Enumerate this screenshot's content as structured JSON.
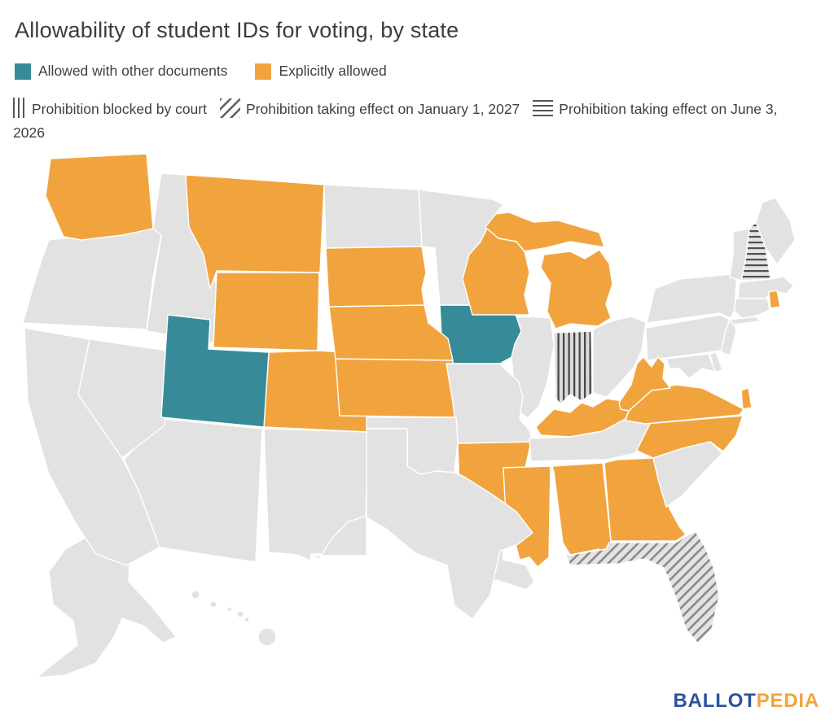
{
  "title": "Allowability of student IDs for voting, by state",
  "legend": {
    "row1": [
      {
        "label": "Allowed with other documents",
        "status": "allowed_with_other_documents",
        "color": "#378B99"
      },
      {
        "label": "Explicitly allowed",
        "status": "explicitly_allowed",
        "color": "#F1A43D"
      }
    ],
    "row2": [
      {
        "label": "Prohibition blocked by court",
        "status": "prohibition_blocked_by_court",
        "pattern": "vertical-lines"
      },
      {
        "label": "Prohibition taking effect on January 1, 2027",
        "status": "prohibition_effective_jan_1_2027",
        "pattern": "diagonal-lines"
      },
      {
        "label": "Prohibition taking effect on June 3, 2026",
        "status": "prohibition_effective_june_3_2026",
        "pattern": "horizontal-lines"
      }
    ]
  },
  "map": {
    "type": "choropleth-us-states",
    "default_color": "#E2E2E2",
    "border_color": "#FFFFFF",
    "status_colors": {
      "allowed_with_other_documents": "#378B99",
      "explicitly_allowed": "#F1A43D",
      "none": "#E2E2E2"
    },
    "pattern_fills": {
      "prohibition_blocked_by_court": "vertical-lines",
      "prohibition_effective_jan_1_2027": "diagonal-lines",
      "prohibition_effective_june_3_2026": "horizontal-lines"
    },
    "states": [
      {
        "id": "AL",
        "name": "Alabama",
        "status": "explicitly_allowed"
      },
      {
        "id": "AK",
        "name": "Alaska",
        "status": "none"
      },
      {
        "id": "AZ",
        "name": "Arizona",
        "status": "none"
      },
      {
        "id": "AR",
        "name": "Arkansas",
        "status": "explicitly_allowed"
      },
      {
        "id": "CA",
        "name": "California",
        "status": "none"
      },
      {
        "id": "CO",
        "name": "Colorado",
        "status": "explicitly_allowed"
      },
      {
        "id": "CT",
        "name": "Connecticut",
        "status": "none"
      },
      {
        "id": "DE",
        "name": "Delaware",
        "status": "none"
      },
      {
        "id": "FL",
        "name": "Florida",
        "status": "prohibition_effective_jan_1_2027"
      },
      {
        "id": "GA",
        "name": "Georgia",
        "status": "explicitly_allowed"
      },
      {
        "id": "HI",
        "name": "Hawaii",
        "status": "none"
      },
      {
        "id": "ID",
        "name": "Idaho",
        "status": "none"
      },
      {
        "id": "IL",
        "name": "Illinois",
        "status": "none"
      },
      {
        "id": "IN",
        "name": "Indiana",
        "status": "prohibition_blocked_by_court"
      },
      {
        "id": "IA",
        "name": "Iowa",
        "status": "allowed_with_other_documents"
      },
      {
        "id": "KS",
        "name": "Kansas",
        "status": "explicitly_allowed"
      },
      {
        "id": "KY",
        "name": "Kentucky",
        "status": "explicitly_allowed"
      },
      {
        "id": "LA",
        "name": "Louisiana",
        "status": "none"
      },
      {
        "id": "ME",
        "name": "Maine",
        "status": "none"
      },
      {
        "id": "MD",
        "name": "Maryland",
        "status": "none"
      },
      {
        "id": "MA",
        "name": "Massachusetts",
        "status": "none"
      },
      {
        "id": "MI",
        "name": "Michigan",
        "status": "explicitly_allowed"
      },
      {
        "id": "MN",
        "name": "Minnesota",
        "status": "none"
      },
      {
        "id": "MS",
        "name": "Mississippi",
        "status": "explicitly_allowed"
      },
      {
        "id": "MO",
        "name": "Missouri",
        "status": "none"
      },
      {
        "id": "MT",
        "name": "Montana",
        "status": "explicitly_allowed"
      },
      {
        "id": "NE",
        "name": "Nebraska",
        "status": "explicitly_allowed"
      },
      {
        "id": "NV",
        "name": "Nevada",
        "status": "none"
      },
      {
        "id": "NH",
        "name": "New Hampshire",
        "status": "prohibition_effective_june_3_2026"
      },
      {
        "id": "NJ",
        "name": "New Jersey",
        "status": "none"
      },
      {
        "id": "NM",
        "name": "New Mexico",
        "status": "none"
      },
      {
        "id": "NY",
        "name": "New York",
        "status": "none"
      },
      {
        "id": "NC",
        "name": "North Carolina",
        "status": "explicitly_allowed"
      },
      {
        "id": "ND",
        "name": "North Dakota",
        "status": "none"
      },
      {
        "id": "OH",
        "name": "Ohio",
        "status": "none"
      },
      {
        "id": "OK",
        "name": "Oklahoma",
        "status": "none"
      },
      {
        "id": "OR",
        "name": "Oregon",
        "status": "none"
      },
      {
        "id": "PA",
        "name": "Pennsylvania",
        "status": "none"
      },
      {
        "id": "RI",
        "name": "Rhode Island",
        "status": "explicitly_allowed"
      },
      {
        "id": "SC",
        "name": "South Carolina",
        "status": "none"
      },
      {
        "id": "SD",
        "name": "South Dakota",
        "status": "explicitly_allowed"
      },
      {
        "id": "TN",
        "name": "Tennessee",
        "status": "none"
      },
      {
        "id": "TX",
        "name": "Texas",
        "status": "none"
      },
      {
        "id": "UT",
        "name": "Utah",
        "status": "allowed_with_other_documents"
      },
      {
        "id": "VT",
        "name": "Vermont",
        "status": "none"
      },
      {
        "id": "VA",
        "name": "Virginia",
        "status": "explicitly_allowed"
      },
      {
        "id": "WA",
        "name": "Washington",
        "status": "explicitly_allowed"
      },
      {
        "id": "WV",
        "name": "West Virginia",
        "status": "explicitly_allowed"
      },
      {
        "id": "WI",
        "name": "Wisconsin",
        "status": "explicitly_allowed"
      },
      {
        "id": "WY",
        "name": "Wyoming",
        "status": "explicitly_allowed"
      }
    ]
  },
  "footer": {
    "logo_part1": "BALLOT",
    "logo_part2": "PEDIA",
    "logo_color1": "#2B529E",
    "logo_color2": "#F1A43D"
  }
}
